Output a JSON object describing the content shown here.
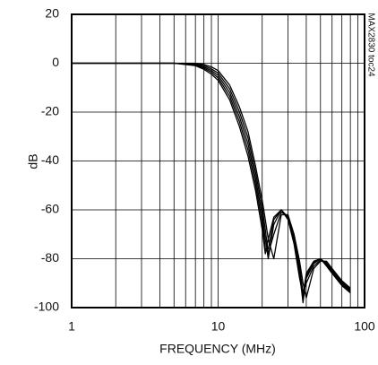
{
  "chart_data": {
    "type": "line",
    "xlabel": "FREQUENCY (MHz)",
    "ylabel": "dB",
    "note": "MAX2830 toc24",
    "x": [
      1,
      5,
      7,
      8,
      9,
      10,
      12,
      14,
      16,
      18,
      20,
      21,
      22,
      24,
      27,
      30,
      33,
      36,
      38,
      40,
      45,
      50,
      55,
      60,
      70,
      80
    ],
    "series": [
      {
        "color": "#000000",
        "values": [
          0,
          0,
          -1,
          -2.5,
          -4.5,
          -7,
          -15,
          -26,
          -38,
          -52,
          -68,
          -78,
          -72,
          -63,
          -60,
          -64,
          -74,
          -88,
          -95,
          -86,
          -81,
          -80,
          -83,
          -86,
          -91,
          -94
        ]
      },
      {
        "color": "#000000",
        "values": [
          0,
          0,
          -0.7,
          -2,
          -3.7,
          -6,
          -13.5,
          -24,
          -35.5,
          -49.5,
          -65,
          -76,
          -76,
          -64,
          -60,
          -63.5,
          -73,
          -86,
          -98,
          -87,
          -81.5,
          -80,
          -82.5,
          -85.5,
          -90.5,
          -93.5
        ]
      },
      {
        "color": "#000000",
        "values": [
          0,
          0,
          -0.5,
          -1.5,
          -3,
          -5,
          -12,
          -22,
          -33,
          -47,
          -62,
          -72,
          -80,
          -66,
          -60,
          -63,
          -72,
          -85,
          -97,
          -88,
          -82,
          -80,
          -82,
          -85,
          -90,
          -93
        ]
      },
      {
        "color": "#000000",
        "values": [
          0,
          0,
          -0.3,
          -1,
          -2.3,
          -4,
          -10.5,
          -20,
          -30.5,
          -44.5,
          -59,
          -68,
          -78,
          -70,
          -61,
          -62.5,
          -71,
          -83,
          -94,
          -90,
          -83,
          -80.5,
          -81.5,
          -84.5,
          -89.5,
          -92.5
        ]
      },
      {
        "color": "#000000",
        "values": [
          0,
          0,
          0,
          -0.5,
          -1.5,
          -3,
          -9,
          -18,
          -28,
          -42,
          -56,
          -64,
          -72,
          -80,
          -62,
          -62,
          -70,
          -81,
          -90,
          -96,
          -84,
          -81,
          -81,
          -84,
          -89,
          -92
        ]
      }
    ],
    "xlim": [
      1,
      100
    ],
    "xticks": [
      1,
      10,
      100
    ],
    "xscale": "log",
    "ylim": [
      -100,
      20
    ],
    "yticks": [
      20,
      0,
      -20,
      -40,
      -60,
      -80,
      -100
    ],
    "grid": true
  }
}
